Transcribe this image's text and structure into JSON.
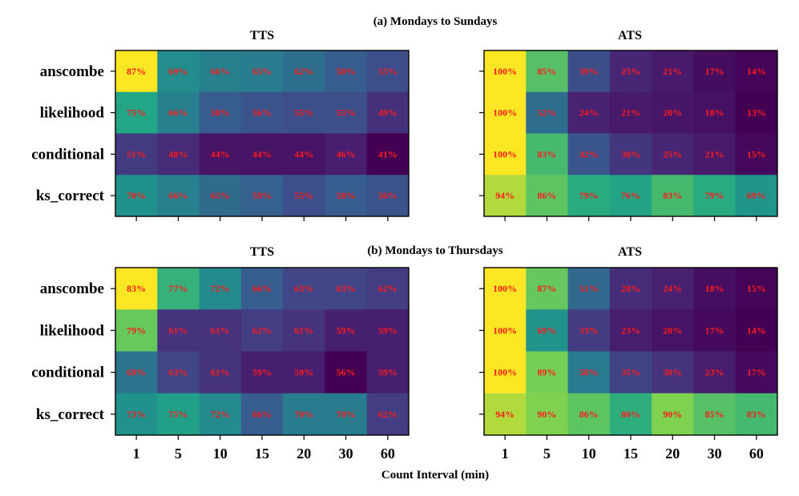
{
  "figure": {
    "xlabel": "Count Interval (min)"
  },
  "chart_data": [
    {
      "type": "heatmap",
      "section_title": "(a) Mondays to Sundays",
      "title": "TTS",
      "rows": [
        "anscombe",
        "likelihood",
        "conditional",
        "ks_correct"
      ],
      "columns": [
        "1",
        "5",
        "10",
        "15",
        "20",
        "30",
        "60"
      ],
      "values": [
        [
          87,
          69,
          66,
          65,
          62,
          58,
          55
        ],
        [
          75,
          66,
          58,
          56,
          55,
          55,
          49
        ],
        [
          51,
          48,
          44,
          44,
          44,
          46,
          41
        ],
        [
          70,
          66,
          61,
          59,
          55,
          58,
          56
        ]
      ],
      "value_format": "{v}%",
      "colormap": "viridis",
      "annotation_color": "#ff1a1a"
    },
    {
      "type": "heatmap",
      "section_title": "",
      "title": "ATS",
      "rows": [
        "anscombe",
        "likelihood",
        "conditional",
        "ks_correct"
      ],
      "columns": [
        "1",
        "5",
        "10",
        "15",
        "20",
        "30",
        "60"
      ],
      "values": [
        [
          100,
          85,
          39,
          25,
          21,
          17,
          14
        ],
        [
          100,
          52,
          24,
          21,
          20,
          18,
          13
        ],
        [
          100,
          83,
          42,
          30,
          25,
          21,
          15
        ],
        [
          94,
          86,
          79,
          76,
          83,
          79,
          69
        ]
      ],
      "value_format": "{v}%",
      "colormap": "viridis",
      "annotation_color": "#ff1a1a"
    },
    {
      "type": "heatmap",
      "section_title": "(b) Mondays to Thursdays",
      "title": "TTS",
      "rows": [
        "anscombe",
        "likelihood",
        "conditional",
        "ks_correct"
      ],
      "columns": [
        "1",
        "5",
        "10",
        "15",
        "20",
        "30",
        "60"
      ],
      "values": [
        [
          83,
          77,
          72,
          66,
          63,
          63,
          62
        ],
        [
          79,
          61,
          61,
          62,
          61,
          59,
          59
        ],
        [
          69,
          63,
          61,
          59,
          59,
          56,
          59
        ],
        [
          73,
          75,
          72,
          66,
          70,
          70,
          62
        ]
      ],
      "value_format": "{v}%",
      "colormap": "viridis",
      "annotation_color": "#ff1a1a"
    },
    {
      "type": "heatmap",
      "section_title": "",
      "title": "ATS",
      "rows": [
        "anscombe",
        "likelihood",
        "conditional",
        "ks_correct"
      ],
      "columns": [
        "1",
        "5",
        "10",
        "15",
        "20",
        "30",
        "60"
      ],
      "values": [
        [
          100,
          87,
          51,
          28,
          24,
          18,
          15
        ],
        [
          100,
          69,
          33,
          23,
          20,
          17,
          14
        ],
        [
          100,
          89,
          58,
          35,
          30,
          23,
          17
        ],
        [
          94,
          90,
          86,
          80,
          90,
          85,
          83
        ]
      ],
      "value_format": "{v}%",
      "colormap": "viridis",
      "annotation_color": "#ff1a1a"
    }
  ]
}
